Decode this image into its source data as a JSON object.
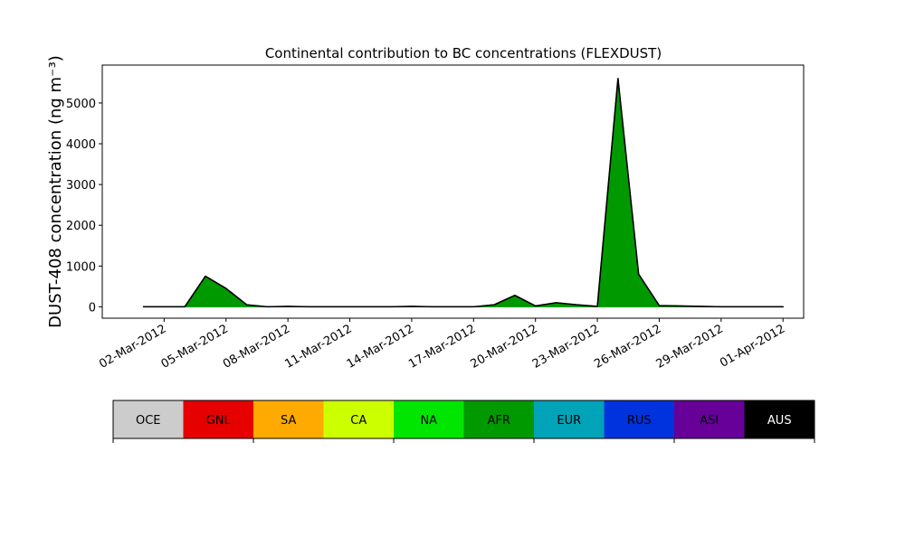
{
  "chart_data": {
    "type": "stacked-area",
    "title": "Continental contribution to BC concentrations (FLEXDUST)",
    "y_label": "DUST-408 concentration (ng m⁻³)",
    "x": [
      "2012-03-01",
      "2012-03-02",
      "2012-03-03",
      "2012-03-04",
      "2012-03-05",
      "2012-03-06",
      "2012-03-07",
      "2012-03-08",
      "2012-03-09",
      "2012-03-10",
      "2012-03-11",
      "2012-03-12",
      "2012-03-13",
      "2012-03-14",
      "2012-03-15",
      "2012-03-16",
      "2012-03-17",
      "2012-03-18",
      "2012-03-19",
      "2012-03-20",
      "2012-03-21",
      "2012-03-22",
      "2012-03-23",
      "2012-03-24",
      "2012-03-25",
      "2012-03-26",
      "2012-03-27",
      "2012-03-28",
      "2012-03-29",
      "2012-03-30",
      "2012-03-31",
      "2012-04-01"
    ],
    "xlim": [
      "2012-02-28",
      "2012-04-02"
    ],
    "xticks": [
      {
        "value": "2012-03-02",
        "label": "02-Mar-2012"
      },
      {
        "value": "2012-03-05",
        "label": "05-Mar-2012"
      },
      {
        "value": "2012-03-08",
        "label": "08-Mar-2012"
      },
      {
        "value": "2012-03-11",
        "label": "11-Mar-2012"
      },
      {
        "value": "2012-03-14",
        "label": "14-Mar-2012"
      },
      {
        "value": "2012-03-17",
        "label": "17-Mar-2012"
      },
      {
        "value": "2012-03-20",
        "label": "20-Mar-2012"
      },
      {
        "value": "2012-03-23",
        "label": "23-Mar-2012"
      },
      {
        "value": "2012-03-26",
        "label": "26-Mar-2012"
      },
      {
        "value": "2012-03-29",
        "label": "29-Mar-2012"
      },
      {
        "value": "2012-04-01",
        "label": "01-Apr-2012"
      }
    ],
    "ylim": [
      -280,
      5930
    ],
    "yticks": [
      0,
      1000,
      2000,
      3000,
      4000,
      5000
    ],
    "series": [
      {
        "name": "OCE",
        "color": "#cccccc",
        "values": [
          0,
          0,
          0,
          0,
          0,
          0,
          0,
          0,
          0,
          0,
          0,
          0,
          0,
          0,
          0,
          0,
          0,
          0,
          0,
          0,
          0,
          0,
          0,
          0,
          0,
          0,
          0,
          0,
          0,
          0,
          0,
          0
        ]
      },
      {
        "name": "GNL",
        "color": "#e60000",
        "values": [
          0,
          0,
          0,
          0,
          0,
          0,
          0,
          0,
          0,
          0,
          0,
          0,
          0,
          0,
          0,
          0,
          0,
          0,
          0,
          0,
          0,
          0,
          0,
          0,
          0,
          0,
          0,
          0,
          0,
          0,
          0,
          0
        ]
      },
      {
        "name": "SA",
        "color": "#ffaa00",
        "values": [
          0,
          0,
          0,
          0,
          0,
          0,
          0,
          0,
          0,
          0,
          0,
          0,
          0,
          0,
          0,
          0,
          0,
          0,
          0,
          0,
          0,
          0,
          0,
          0,
          0,
          0,
          0,
          0,
          0,
          0,
          0,
          0
        ]
      },
      {
        "name": "CA",
        "color": "#ccff00",
        "values": [
          0,
          0,
          0,
          0,
          0,
          0,
          0,
          0,
          0,
          0,
          0,
          0,
          0,
          0,
          0,
          0,
          0,
          0,
          0,
          0,
          0,
          0,
          0,
          0,
          0,
          0,
          0,
          0,
          0,
          0,
          0,
          0
        ]
      },
      {
        "name": "NA",
        "color": "#00e600",
        "values": [
          0,
          0,
          0,
          0,
          0,
          0,
          0,
          0,
          0,
          0,
          0,
          0,
          0,
          0,
          0,
          0,
          0,
          0,
          0,
          0,
          0,
          0,
          0,
          0,
          0,
          0,
          0,
          0,
          0,
          0,
          0,
          0
        ]
      },
      {
        "name": "AFR",
        "color": "#009900",
        "values": [
          0,
          0,
          0,
          750,
          450,
          50,
          0,
          10,
          0,
          0,
          0,
          0,
          0,
          10,
          0,
          0,
          0,
          50,
          280,
          20,
          100,
          50,
          10,
          5600,
          800,
          30,
          20,
          10,
          0,
          0,
          0,
          0
        ]
      },
      {
        "name": "EUR",
        "color": "#00a3b8",
        "values": [
          0,
          0,
          0,
          0,
          0,
          0,
          0,
          0,
          0,
          0,
          0,
          0,
          0,
          0,
          0,
          0,
          0,
          0,
          0,
          0,
          0,
          0,
          0,
          0,
          0,
          0,
          0,
          0,
          0,
          0,
          0,
          0
        ]
      },
      {
        "name": "RUS",
        "color": "#0033dd",
        "values": [
          0,
          0,
          0,
          0,
          0,
          0,
          0,
          0,
          0,
          0,
          0,
          0,
          0,
          0,
          0,
          0,
          0,
          0,
          0,
          0,
          0,
          0,
          0,
          0,
          0,
          0,
          0,
          0,
          0,
          0,
          0,
          0
        ]
      },
      {
        "name": "ASI",
        "color": "#660099",
        "values": [
          0,
          0,
          0,
          0,
          0,
          0,
          0,
          0,
          0,
          0,
          0,
          0,
          0,
          0,
          0,
          0,
          0,
          0,
          0,
          0,
          0,
          0,
          0,
          0,
          0,
          0,
          0,
          0,
          0,
          0,
          0,
          0
        ]
      },
      {
        "name": "AUS",
        "color": "#000000",
        "values": [
          0,
          0,
          0,
          0,
          0,
          0,
          0,
          0,
          0,
          0,
          0,
          0,
          0,
          0,
          0,
          0,
          0,
          0,
          0,
          0,
          0,
          0,
          0,
          0,
          0,
          0,
          0,
          0,
          0,
          0,
          0,
          0
        ]
      }
    ]
  }
}
